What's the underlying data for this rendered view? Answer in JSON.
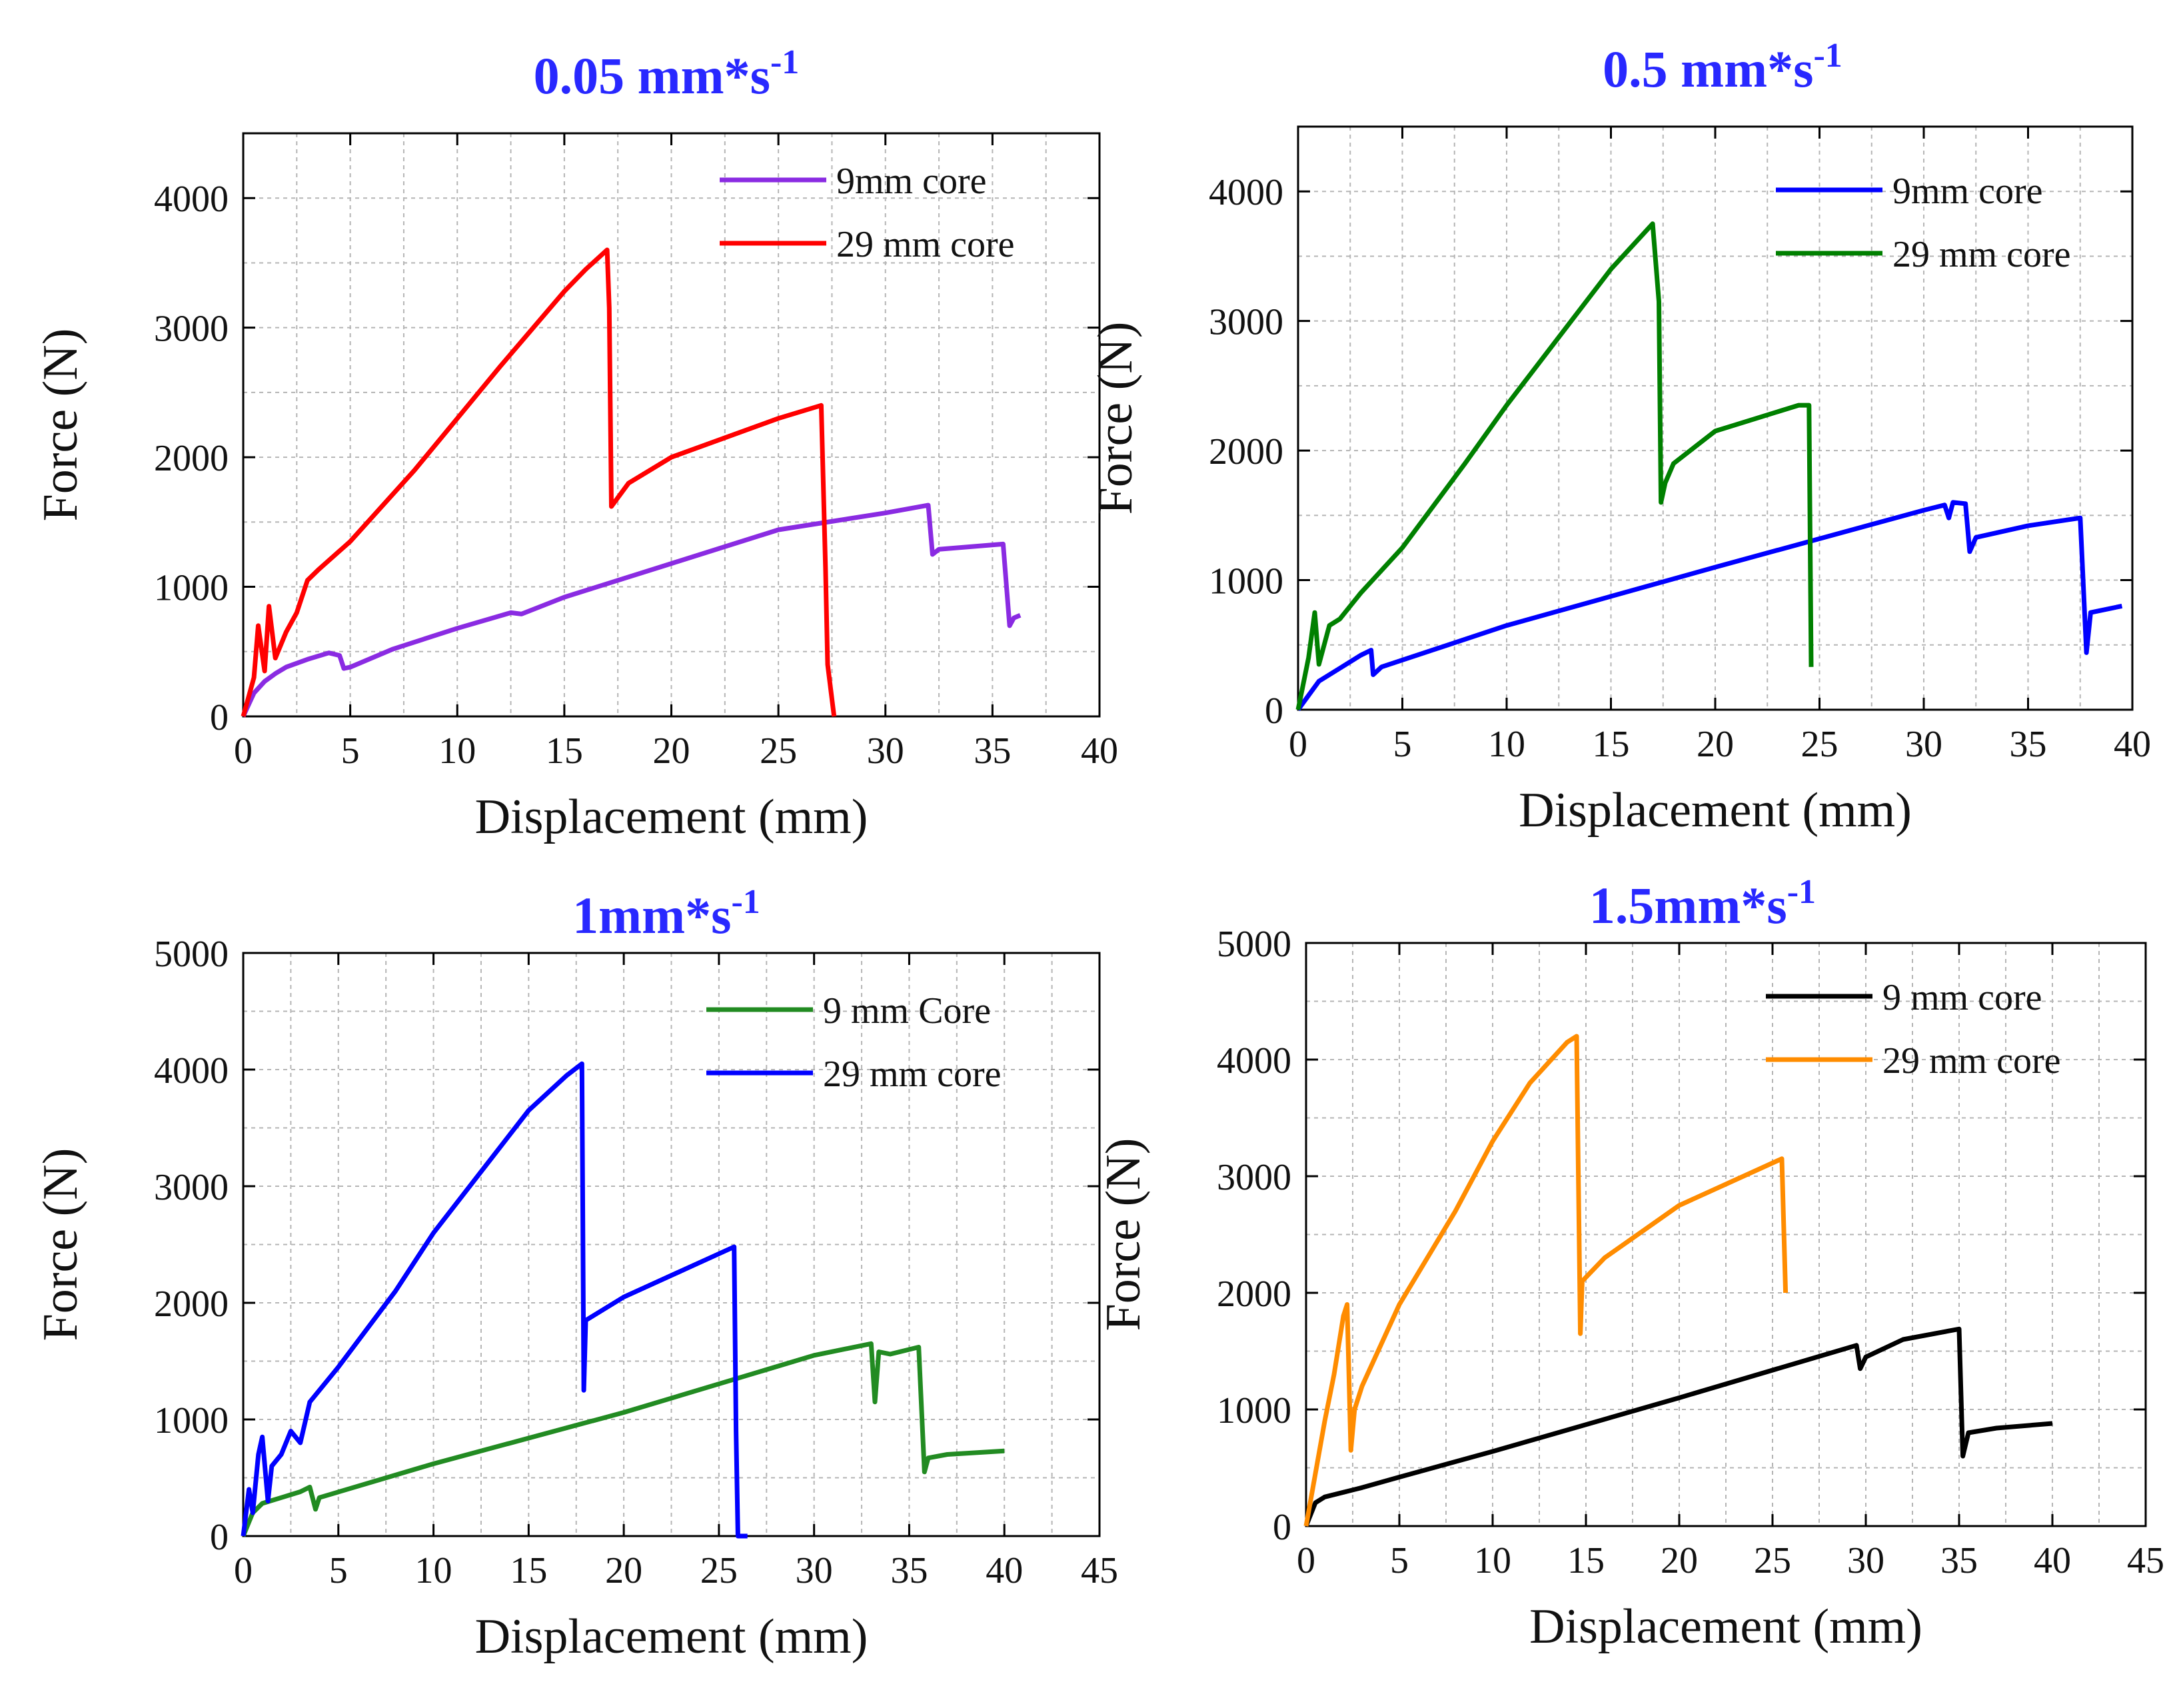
{
  "chart_data": [
    {
      "type": "line",
      "title": "0.05 mm*s",
      "title_superscript": "-1",
      "xlabel": "Displacement (mm)",
      "ylabel": "Force (N)",
      "xlim": [
        0,
        40
      ],
      "ylim": [
        0,
        4500
      ],
      "xticks": [
        0,
        5,
        10,
        15,
        20,
        25,
        30,
        35,
        40
      ],
      "yticks": [
        0,
        1000,
        2000,
        3000,
        4000
      ],
      "grid": true,
      "legend_position": "top-right",
      "series": [
        {
          "name": "9mm core",
          "color": "#8a2be2",
          "x": [
            0,
            0.5,
            1,
            1.5,
            2,
            3,
            4,
            4.5,
            4.7,
            5,
            7,
            10,
            12.5,
            13,
            15,
            20,
            25,
            30,
            32,
            32.2,
            32.5,
            35.5,
            35.8,
            36,
            36.3
          ],
          "y": [
            0,
            180,
            270,
            330,
            380,
            440,
            490,
            470,
            370,
            380,
            520,
            680,
            800,
            790,
            920,
            1180,
            1440,
            1570,
            1630,
            1250,
            1290,
            1330,
            700,
            760,
            780
          ]
        },
        {
          "name": "29 mm core",
          "color": "#ff0000",
          "x": [
            0,
            0.5,
            0.7,
            1,
            1.2,
            1.5,
            2,
            2.5,
            3,
            3.5,
            5,
            8,
            10,
            12,
            15,
            16,
            17,
            17.1,
            17.2,
            18,
            20,
            25,
            27,
            27.2,
            27.3,
            27.6
          ],
          "y": [
            0,
            300,
            700,
            350,
            850,
            450,
            650,
            800,
            1050,
            1130,
            1350,
            1900,
            2300,
            2700,
            3280,
            3450,
            3600,
            3150,
            1620,
            1800,
            2000,
            2300,
            2400,
            1150,
            400,
            0
          ]
        }
      ]
    },
    {
      "type": "line",
      "title": "0.5 mm*s",
      "title_superscript": "-1",
      "xlabel": "Displacement (mm)",
      "ylabel": "Force (N)",
      "xlim": [
        0,
        40
      ],
      "ylim": [
        0,
        4500
      ],
      "xticks": [
        0,
        5,
        10,
        15,
        20,
        25,
        30,
        35,
        40
      ],
      "yticks": [
        0,
        1000,
        2000,
        3000,
        4000
      ],
      "grid": true,
      "legend_position": "top-right",
      "series": [
        {
          "name": "9mm core",
          "color": "#0000ff",
          "x": [
            0,
            1,
            2,
            3,
            3.5,
            3.6,
            4,
            10,
            20,
            30,
            31,
            31.2,
            31.4,
            32,
            32.2,
            32.5,
            35,
            37.5,
            37.8,
            38,
            39.5
          ],
          "y": [
            0,
            220,
            320,
            420,
            460,
            270,
            330,
            650,
            1100,
            1540,
            1580,
            1480,
            1600,
            1590,
            1220,
            1330,
            1420,
            1480,
            440,
            750,
            800
          ]
        },
        {
          "name": "29 mm core",
          "color": "#008000",
          "x": [
            0,
            0.5,
            0.8,
            1,
            1.5,
            2,
            3,
            5,
            8,
            10,
            15,
            17,
            17.3,
            17.4,
            17.6,
            18,
            20,
            24,
            24.5,
            24.6
          ],
          "y": [
            0,
            400,
            750,
            350,
            650,
            700,
            900,
            1250,
            1900,
            2350,
            3400,
            3750,
            3150,
            1600,
            1750,
            1900,
            2150,
            2350,
            2350,
            330
          ]
        }
      ]
    },
    {
      "type": "line",
      "title": "1mm*s",
      "title_superscript": "-1",
      "xlabel": "Displacement (mm)",
      "ylabel": "Force (N)",
      "xlim": [
        0,
        45
      ],
      "ylim": [
        0,
        5000
      ],
      "xticks": [
        0,
        5,
        10,
        15,
        20,
        25,
        30,
        35,
        40,
        45
      ],
      "yticks": [
        0,
        1000,
        2000,
        3000,
        4000,
        5000
      ],
      "grid": true,
      "legend_position": "top-right",
      "series": [
        {
          "name": "9 mm Core",
          "color": "#228b22",
          "x": [
            0,
            0.5,
            1,
            2,
            3,
            3.5,
            3.8,
            4,
            10,
            20,
            30,
            33,
            33.2,
            33.4,
            34,
            35.5,
            35.8,
            36,
            37,
            40
          ],
          "y": [
            0,
            200,
            280,
            330,
            380,
            420,
            230,
            330,
            620,
            1060,
            1550,
            1650,
            1150,
            1580,
            1560,
            1620,
            550,
            670,
            700,
            730
          ]
        },
        {
          "name": "29 mm core",
          "color": "#0000ff",
          "x": [
            0,
            0.3,
            0.5,
            0.8,
            1,
            1.3,
            1.5,
            2,
            2.5,
            3,
            3.5,
            5,
            8,
            10,
            15,
            17,
            17.8,
            17.9,
            18,
            20,
            25.8,
            25.9,
            26,
            26.5
          ],
          "y": [
            0,
            400,
            200,
            700,
            850,
            300,
            600,
            700,
            900,
            800,
            1150,
            1450,
            2100,
            2600,
            3650,
            3950,
            4050,
            1250,
            1850,
            2050,
            2480,
            900,
            0,
            0
          ]
        }
      ]
    },
    {
      "type": "line",
      "title": "1.5mm*s",
      "title_superscript": "-1",
      "xlabel": "Displacement (mm)",
      "ylabel": "Force (N)",
      "xlim": [
        0,
        45
      ],
      "ylim": [
        0,
        5000
      ],
      "xticks": [
        0,
        5,
        10,
        15,
        20,
        25,
        30,
        35,
        40,
        45
      ],
      "yticks": [
        0,
        1000,
        2000,
        3000,
        4000,
        5000
      ],
      "grid": true,
      "legend_position": "top-right",
      "series": [
        {
          "name": "9 mm core",
          "color": "#000000",
          "x": [
            0,
            0.5,
            1,
            2,
            3,
            5,
            10,
            20,
            29.5,
            29.7,
            30,
            32,
            35,
            35.2,
            35.5,
            37,
            40
          ],
          "y": [
            0,
            200,
            250,
            290,
            330,
            420,
            640,
            1100,
            1550,
            1350,
            1450,
            1600,
            1690,
            600,
            800,
            840,
            880
          ]
        },
        {
          "name": "29 mm core",
          "color": "#ff8c00",
          "x": [
            0,
            1,
            1.5,
            2,
            2.2,
            2.4,
            2.6,
            3,
            5,
            8,
            10,
            12,
            14,
            14.5,
            14.7,
            14.8,
            16,
            20,
            25.5,
            25.7
          ],
          "y": [
            0,
            900,
            1300,
            1800,
            1900,
            650,
            1000,
            1200,
            1900,
            2700,
            3300,
            3800,
            4150,
            4200,
            1650,
            2100,
            2300,
            2750,
            3150,
            2000
          ]
        }
      ]
    }
  ]
}
